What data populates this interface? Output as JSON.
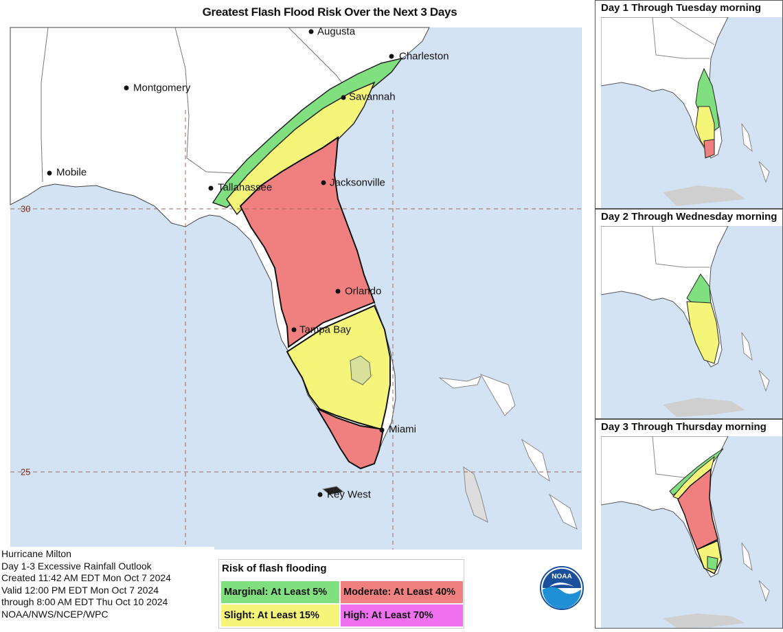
{
  "title": "Greatest Flash Flood Risk Over the Next 3 Days",
  "cities": [
    {
      "name": "Augusta",
      "key": "augusta"
    },
    {
      "name": "Charleston",
      "key": "charleston"
    },
    {
      "name": "Montgomery",
      "key": "montgomery"
    },
    {
      "name": "Savannah",
      "key": "savannah"
    },
    {
      "name": "Mobile",
      "key": "mobile"
    },
    {
      "name": "Tallahassee",
      "key": "tallahassee"
    },
    {
      "name": "Jacksonville",
      "key": "jacksonville"
    },
    {
      "name": "Orlando",
      "key": "orlando"
    },
    {
      "name": "Tampa Bay",
      "key": "tampa"
    },
    {
      "name": "Miami",
      "key": "miami"
    },
    {
      "name": "Key West",
      "key": "keywest"
    }
  ],
  "latitudes": {
    "north": "30",
    "south": "25"
  },
  "info": {
    "line1": "Hurricane Milton",
    "line2": "Day 1-3 Excessive Rainfall Outlook",
    "line3": "Created 11:42 AM EDT Mon Oct 7 2024",
    "line4": "Valid 12:00 PM EDT Mon Oct 7 2024",
    "line5": "through 8:00 AM EDT Thu Oct 10 2024",
    "line6": "NOAA/NWS/NCEP/WPC"
  },
  "legend": {
    "title": "Risk of flash flooding",
    "marginal": "Marginal: At Least 5%",
    "moderate": "Moderate: At Least 40%",
    "slight": "Slight: At Least 15%",
    "high": "High: At Least 70%"
  },
  "logo_text": "NOAA",
  "insets": {
    "day1": "Day 1 Through Tuesday morning",
    "day2": "Day 2 Through Wednesday morning",
    "day3": "Day 3 Through Thursday morning"
  },
  "colors": {
    "ocean": "#d3e3f4",
    "land": "#ffffff",
    "marginal": "#80e080",
    "slight": "#f5f57a",
    "moderate": "#f08080",
    "high": "#f070f0",
    "cuba": "#cfcfcf",
    "gridline": "#9a6a5a"
  }
}
